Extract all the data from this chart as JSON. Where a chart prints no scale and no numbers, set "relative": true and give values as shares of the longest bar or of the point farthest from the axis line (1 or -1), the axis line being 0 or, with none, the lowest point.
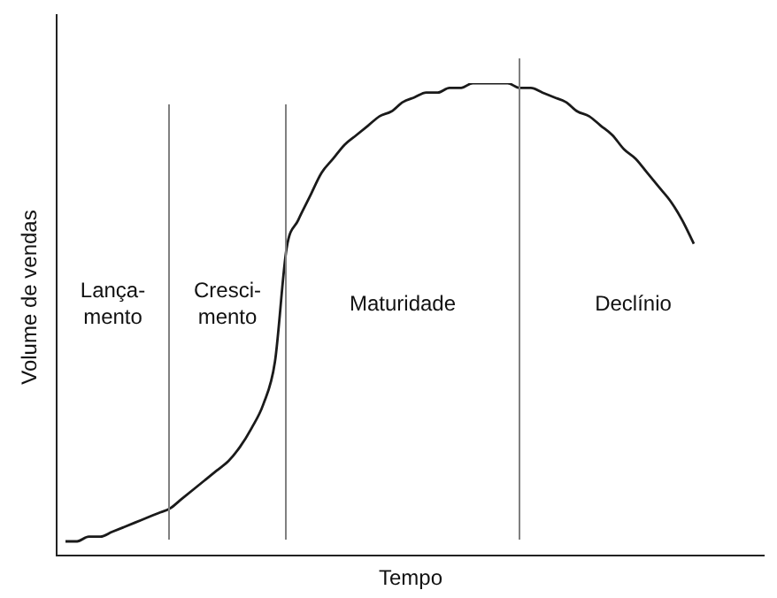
{
  "chart_data": {
    "type": "line",
    "relative": true,
    "xlabel": "Tempo",
    "ylabel": "Volume de vendas",
    "color": "#1a1a1a",
    "marker": "none",
    "categories": [
      null,
      null,
      null,
      null,
      null,
      null,
      null,
      null,
      null,
      null,
      null,
      null,
      null,
      null,
      null,
      null,
      null,
      null,
      null,
      null,
      null,
      null,
      null,
      null,
      null,
      null,
      null,
      null,
      null,
      null,
      null,
      null,
      null,
      null,
      null,
      null,
      null,
      null,
      null,
      null,
      null,
      null,
      null,
      null,
      null,
      null,
      null,
      null,
      null,
      null,
      null,
      null,
      null,
      null,
      null
    ],
    "values": [
      0.03,
      0.03,
      0.04,
      0.04,
      0.05,
      0.06,
      0.07,
      0.08,
      0.09,
      0.1,
      0.12,
      0.14,
      0.16,
      0.18,
      0.2,
      0.23,
      0.27,
      0.32,
      0.41,
      0.65,
      0.71,
      0.76,
      0.81,
      0.84,
      0.87,
      0.89,
      0.91,
      0.93,
      0.94,
      0.96,
      0.97,
      0.98,
      0.98,
      0.99,
      0.99,
      1.0,
      1.0,
      1.0,
      1.0,
      0.99,
      0.99,
      0.98,
      0.97,
      0.96,
      0.94,
      0.93,
      0.91,
      0.89,
      0.86,
      0.84,
      0.81,
      0.78,
      0.75,
      0.71,
      0.66
    ],
    "annotations": [
      "Lança-\nmento",
      "Cresci-\nmento",
      "Maturidade",
      "Declínio"
    ]
  }
}
